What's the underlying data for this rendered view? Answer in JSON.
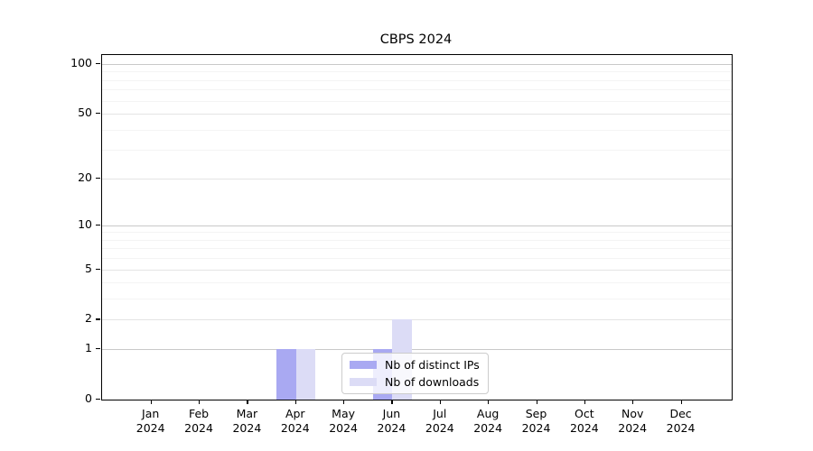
{
  "chart_data": {
    "type": "bar",
    "title": "CBPS 2024",
    "x_categories": [
      "Jan",
      "Feb",
      "Mar",
      "Apr",
      "May",
      "Jun",
      "Jul",
      "Aug",
      "Sep",
      "Oct",
      "Nov",
      "Dec"
    ],
    "x_year": "2024",
    "series": [
      {
        "name": "Nb of distinct IPs",
        "color": "#a9a9f2",
        "values": [
          0,
          0,
          0,
          1,
          0,
          1,
          0,
          0,
          0,
          0,
          0,
          0
        ]
      },
      {
        "name": "Nb of downloads",
        "color": "#dcdcf6",
        "values": [
          0,
          0,
          0,
          1,
          0,
          2,
          0,
          0,
          0,
          0,
          0,
          0
        ]
      }
    ],
    "y_axis": {
      "scale": "log1p",
      "major_ticks": [
        0,
        1,
        2,
        5,
        10,
        20,
        50,
        100
      ],
      "decade_ticks": [
        1,
        10,
        100
      ],
      "minor_ticks": [
        3,
        4,
        6,
        7,
        8,
        9,
        30,
        40,
        60,
        70,
        80,
        90
      ],
      "max": 100
    },
    "legend": {
      "location": "lower center",
      "entries": [
        "Nb of distinct IPs",
        "Nb of downloads"
      ]
    },
    "grid": true
  }
}
